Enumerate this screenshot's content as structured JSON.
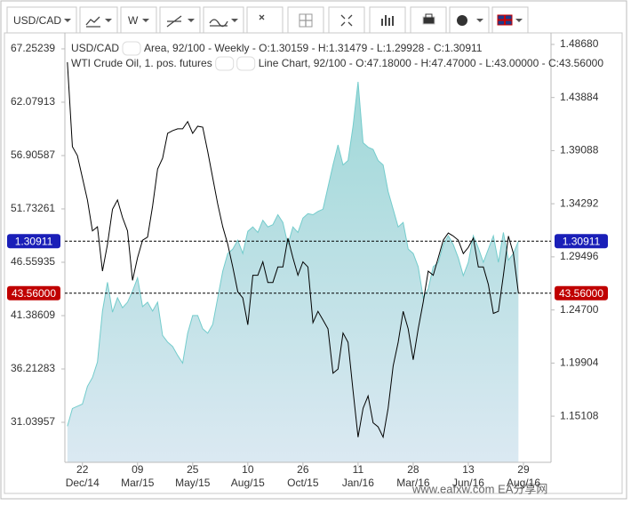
{
  "toolbar": {
    "symbol": "USD/CAD",
    "period": "W"
  },
  "chart_data": {
    "type": "area",
    "x": [
      0,
      1,
      2,
      3,
      4,
      5,
      6,
      7,
      8,
      9,
      10,
      11,
      12,
      13,
      14,
      15,
      16,
      17,
      18,
      19,
      20,
      21,
      22,
      23,
      24,
      25,
      26,
      27,
      28,
      29,
      30,
      31,
      32,
      33,
      34,
      35,
      36,
      37,
      38,
      39,
      40,
      41,
      42,
      43,
      44,
      45,
      46,
      47,
      48,
      49,
      50,
      51,
      52,
      53,
      54,
      55,
      56,
      57,
      58,
      59,
      60,
      61,
      62,
      63,
      64,
      65,
      66,
      67,
      68,
      69,
      70,
      71,
      72,
      73,
      74,
      75,
      76,
      77,
      78,
      79,
      80,
      81,
      82,
      83,
      84,
      85,
      86,
      87,
      88,
      89,
      90
    ],
    "xlim": [
      -0.5,
      96.5
    ],
    "xticks": [
      {
        "value": 3,
        "label": "22",
        "period": "Dec/14"
      },
      {
        "value": 14,
        "label": "09",
        "period": "Mar/15"
      },
      {
        "value": 25,
        "label": "25",
        "period": "May/15"
      },
      {
        "value": 36,
        "label": "10",
        "period": "Aug/15"
      },
      {
        "value": 47,
        "label": "26",
        "period": "Oct/15"
      },
      {
        "value": 58,
        "label": "11",
        "period": "Jan/16"
      },
      {
        "value": 69,
        "label": "28",
        "period": "Mar/16"
      },
      {
        "value": 80,
        "label": "13",
        "period": "Jun/16"
      },
      {
        "value": 91,
        "label": "29",
        "period": "Aug/16"
      }
    ],
    "ylim": [
      27.16,
      68.8
    ],
    "yticks": [
      31.03957,
      36.21283,
      41.38609,
      46.55935,
      51.73261,
      56.90587,
      62.07913,
      67.25239
    ],
    "y2lim": [
      1.1094,
      1.4972
    ],
    "y2ticks": [
      1.15108,
      1.19904,
      {
        "value": 1.247,
        "label": "1.24700"
      },
      1.29496,
      1.34292,
      1.39088,
      1.43884,
      {
        "value": 1.4868,
        "label": "1.48680"
      }
    ],
    "series": [
      {
        "name": "USD/CAD",
        "description": "Area, 92/100 - Weekly - O:1.30159 - H:1.31479 - L:1.29928 - C:1.30911",
        "type": "area",
        "axis": "y2",
        "color": "#74cccc",
        "last_label": "1.30911",
        "label_color": "#1a1fb8",
        "values": [
          1.142,
          1.158,
          1.16,
          1.162,
          1.178,
          1.186,
          1.2,
          1.246,
          1.272,
          1.245,
          1.258,
          1.249,
          1.254,
          1.264,
          1.276,
          1.25,
          1.254,
          1.246,
          1.254,
          1.224,
          1.218,
          1.214,
          1.206,
          1.199,
          1.226,
          1.242,
          1.242,
          1.23,
          1.226,
          1.234,
          1.258,
          1.282,
          1.298,
          1.302,
          1.31,
          1.298,
          1.318,
          1.322,
          1.317,
          1.328,
          1.322,
          1.324,
          1.333,
          1.326,
          1.306,
          1.322,
          1.317,
          1.33,
          1.334,
          1.333,
          1.336,
          1.338,
          1.358,
          1.378,
          1.396,
          1.378,
          1.382,
          1.413,
          1.453,
          1.398,
          1.394,
          1.392,
          1.382,
          1.378,
          1.354,
          1.338,
          1.322,
          1.326,
          1.302,
          1.298,
          1.286,
          1.258,
          1.266,
          1.286,
          1.29,
          1.306,
          1.314,
          1.306,
          1.294,
          1.278,
          1.29,
          1.314,
          1.303,
          1.29,
          1.302,
          1.314,
          1.29,
          1.317,
          1.292,
          1.298,
          1.30911
        ]
      },
      {
        "name": "WTI Crude Oil, 1. pos. futures",
        "description": "Line Chart, 92/100 - O:47.18000 - H:47.47000 - L:43.00000 - C:43.56000",
        "type": "line",
        "axis": "y",
        "color": "#000000",
        "last_label": "43.56000",
        "label_color": "#c00000",
        "values": [
          65.96,
          57.77,
          56.9,
          54.75,
          52.6,
          49.6,
          50.0,
          45.7,
          48.3,
          51.7,
          52.6,
          50.9,
          49.6,
          44.8,
          47.0,
          48.7,
          49.0,
          52.0,
          55.6,
          56.65,
          59.06,
          59.32,
          59.5,
          59.5,
          60.2,
          59.06,
          59.75,
          59.66,
          57.3,
          54.75,
          52.2,
          50.0,
          48.3,
          46.1,
          43.7,
          43.1,
          40.5,
          45.3,
          45.3,
          46.6,
          44.6,
          44.6,
          46.1,
          46.1,
          48.9,
          47.0,
          45.3,
          46.6,
          46.1,
          40.7,
          41.8,
          40.96,
          40.1,
          35.8,
          36.2,
          39.7,
          38.8,
          34.1,
          29.6,
          32.4,
          33.6,
          31.0,
          30.6,
          29.6,
          32.4,
          36.5,
          38.8,
          41.8,
          40.1,
          37.1,
          40.1,
          42.7,
          45.7,
          45.3,
          47.0,
          48.7,
          49.4,
          49.1,
          48.7,
          47.4,
          48.0,
          48.9,
          46.1,
          46.1,
          44.4,
          41.6,
          41.8,
          45.3,
          49.1,
          47.4,
          43.56
        ]
      }
    ]
  },
  "watermark": "www.eafxw.com  EA分享网"
}
